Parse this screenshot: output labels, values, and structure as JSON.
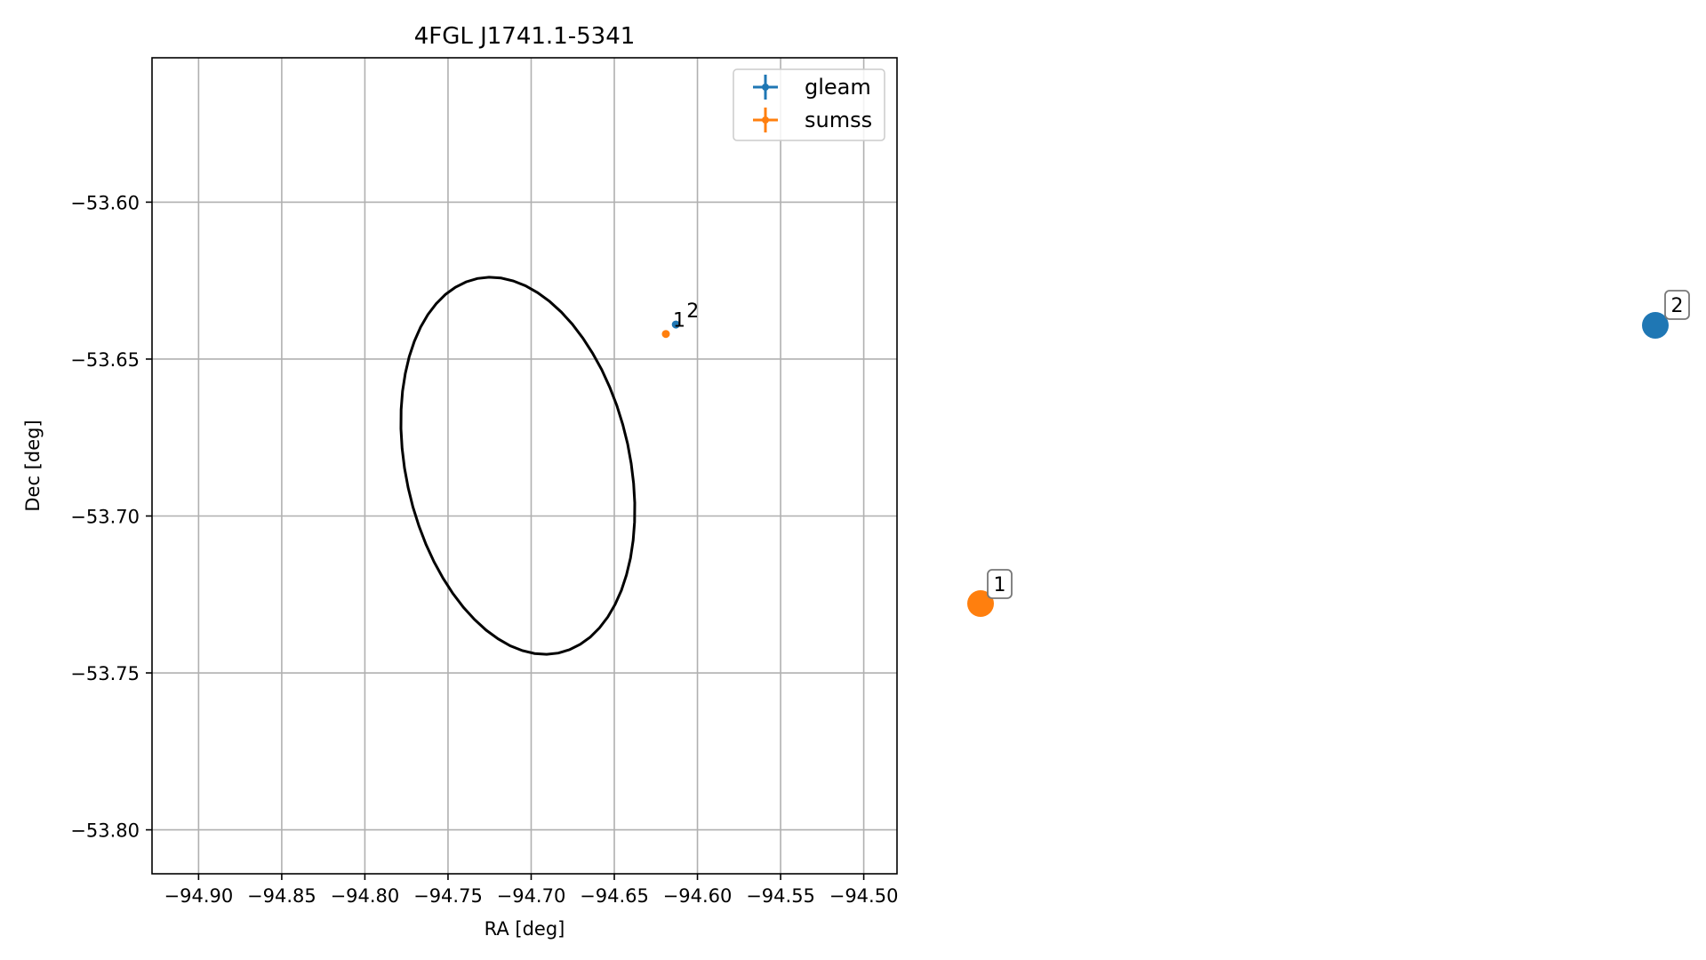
{
  "chart_data": {
    "type": "scatter",
    "title": "4FGL J1741.1-5341",
    "xlabel": "RA [deg]",
    "ylabel": "Dec [deg]",
    "xlim": [
      -94.928,
      -94.48
    ],
    "ylim": [
      -53.814,
      -53.554
    ],
    "x_ticks": [
      -94.9,
      -94.85,
      -94.8,
      -94.75,
      -94.7,
      -94.65,
      -94.6,
      -94.55,
      -94.5
    ],
    "x_tick_labels": [
      "−94.90",
      "−94.85",
      "−94.80",
      "−94.75",
      "−94.70",
      "−94.65",
      "−94.60",
      "−94.55",
      "−94.50"
    ],
    "y_ticks": [
      -53.6,
      -53.65,
      -53.7,
      -53.75,
      -53.8
    ],
    "y_tick_labels": [
      "−53.60",
      "−53.65",
      "−53.70",
      "−53.75",
      "−53.80"
    ],
    "grid": true,
    "legend_position": "top-right",
    "series": [
      {
        "name": "gleam",
        "color": "#1f77b4",
        "points": [
          {
            "x": -94.613,
            "y": -53.639,
            "label": "2"
          }
        ]
      },
      {
        "name": "sumss",
        "color": "#ff7f0e",
        "points": [
          {
            "x": -94.619,
            "y": -53.642,
            "label": "1"
          }
        ]
      }
    ],
    "ellipse": {
      "color": "#000000",
      "center_ra": -94.708,
      "center_dec": -53.684,
      "semi_major_deg": 0.074,
      "semi_minor_deg": 0.0555,
      "angle_deg": -28
    },
    "zoom_markers": [
      {
        "label": "1",
        "color": "#ff7f0e"
      },
      {
        "label": "2",
        "color": "#1f77b4"
      }
    ]
  }
}
